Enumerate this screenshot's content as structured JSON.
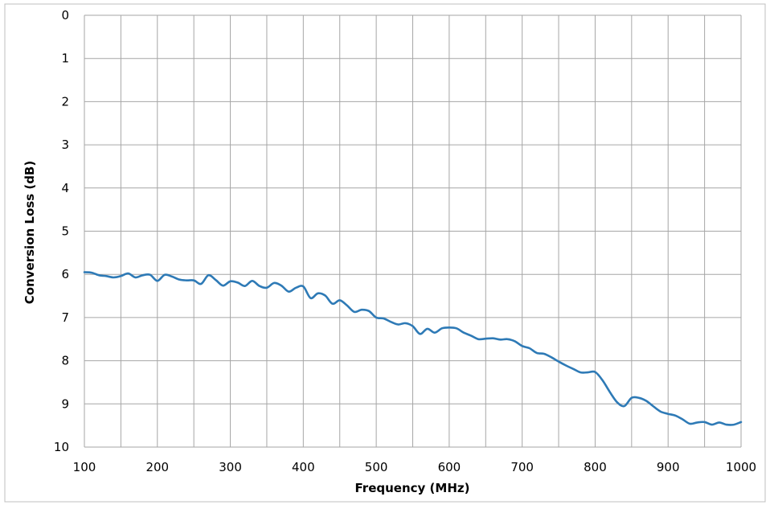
{
  "chart_data": {
    "type": "line",
    "title": "",
    "xlabel": "Frequency (MHz)",
    "ylabel": "Conversion Loss (dB)",
    "xlim": [
      100,
      1000
    ],
    "ylim": [
      0,
      10
    ],
    "y_inverted": true,
    "grid": true,
    "legend": "none",
    "x_ticks": [
      "100",
      "200",
      "300",
      "400",
      "500",
      "600",
      "700",
      "800",
      "900",
      "1000"
    ],
    "y_ticks": [
      "0",
      "1",
      "2",
      "3",
      "4",
      "5",
      "6",
      "7",
      "8",
      "9",
      "10"
    ],
    "series_color": "#2e7ab6",
    "series": [
      {
        "name": "",
        "x": [
          100,
          110,
          120,
          130,
          140,
          150,
          160,
          170,
          180,
          190,
          200,
          210,
          220,
          230,
          240,
          250,
          260,
          270,
          280,
          290,
          300,
          310,
          320,
          330,
          340,
          350,
          360,
          370,
          380,
          390,
          400,
          410,
          420,
          430,
          440,
          450,
          460,
          470,
          480,
          490,
          500,
          510,
          520,
          530,
          540,
          550,
          560,
          570,
          580,
          590,
          600,
          610,
          620,
          630,
          640,
          650,
          660,
          670,
          680,
          690,
          700,
          710,
          720,
          730,
          740,
          750,
          760,
          770,
          780,
          790,
          800,
          810,
          820,
          830,
          840,
          850,
          860,
          870,
          880,
          890,
          900,
          910,
          920,
          930,
          940,
          950,
          960,
          970,
          980,
          990,
          1000
        ],
        "y": [
          5.95,
          5.96,
          6.02,
          6.04,
          6.07,
          6.04,
          5.98,
          6.07,
          6.02,
          6.01,
          6.15,
          6.01,
          6.05,
          6.12,
          6.14,
          6.14,
          6.22,
          6.02,
          6.13,
          6.26,
          6.16,
          6.19,
          6.27,
          6.15,
          6.27,
          6.31,
          6.2,
          6.26,
          6.4,
          6.31,
          6.28,
          6.55,
          6.44,
          6.49,
          6.68,
          6.6,
          6.72,
          6.87,
          6.82,
          6.85,
          7.0,
          7.02,
          7.1,
          7.16,
          7.13,
          7.2,
          7.38,
          7.26,
          7.35,
          7.25,
          7.23,
          7.25,
          7.35,
          7.42,
          7.5,
          7.49,
          7.48,
          7.51,
          7.5,
          7.55,
          7.66,
          7.71,
          7.82,
          7.84,
          7.92,
          8.02,
          8.11,
          8.19,
          8.27,
          8.27,
          8.26,
          8.45,
          8.72,
          8.96,
          9.05,
          8.86,
          8.86,
          8.93,
          9.06,
          9.18,
          9.23,
          9.27,
          9.36,
          9.46,
          9.43,
          9.42,
          9.48,
          9.43,
          9.48,
          9.48,
          9.42
        ]
      }
    ]
  }
}
